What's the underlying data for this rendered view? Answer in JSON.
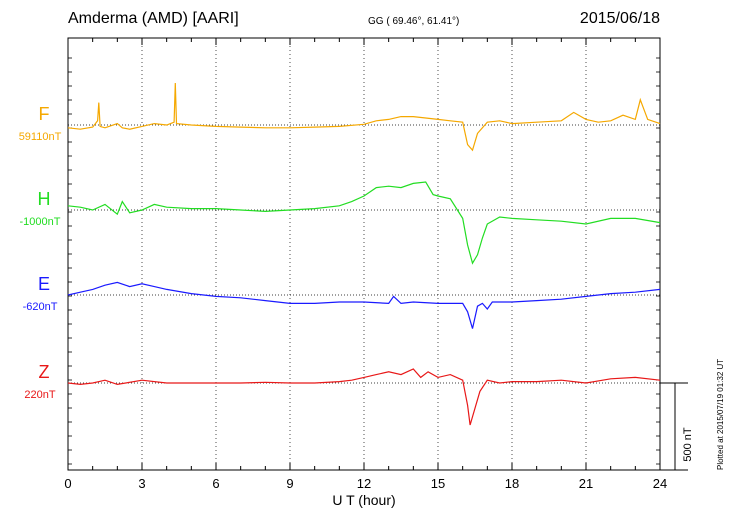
{
  "header": {
    "station": "Amderma (AMD)  [AARI]",
    "coords": "GG ( 69.46°,  61.41°)",
    "date": "2015/06/18"
  },
  "footer": {
    "plotted": "Plotted at 2015/07/19 01:32 UT"
  },
  "scale": {
    "label": "500 nT",
    "value_nT": 500
  },
  "chart_data": {
    "type": "line",
    "title": "Amderma (AMD)  [AARI]",
    "xlabel": "U T (hour)",
    "xlim": [
      0,
      24
    ],
    "xticks": [
      "0",
      "3",
      "6",
      "9",
      "12",
      "15",
      "18",
      "21",
      "24"
    ],
    "y_unit": "nT",
    "grid": "dotted vertical every 3 h",
    "series": [
      {
        "name": "F",
        "baseline_label": "59110nT",
        "baseline": 59110,
        "color": "#f5a800",
        "x": [
          0,
          0.5,
          1,
          1.2,
          1.25,
          1.3,
          1.5,
          2,
          2.2,
          2.5,
          3,
          3.5,
          4,
          4.3,
          4.35,
          4.4,
          5,
          6,
          7,
          8,
          9,
          10,
          11,
          12,
          12.5,
          13,
          13.5,
          14,
          14.5,
          15,
          15.5,
          16,
          16.2,
          16.4,
          16.6,
          17,
          17.5,
          18,
          19,
          20,
          20.5,
          21,
          21.5,
          22,
          22.5,
          23,
          23.2,
          23.5,
          24
        ],
        "values": [
          -20,
          -30,
          -15,
          30,
          160,
          -10,
          -20,
          10,
          -20,
          -30,
          -10,
          10,
          0,
          20,
          300,
          10,
          0,
          -10,
          -15,
          -20,
          -20,
          -15,
          -10,
          5,
          30,
          40,
          60,
          60,
          50,
          40,
          30,
          20,
          -140,
          -180,
          -60,
          20,
          30,
          10,
          20,
          30,
          90,
          40,
          20,
          30,
          70,
          40,
          180,
          40,
          10
        ]
      },
      {
        "name": "H",
        "baseline_label": "-1000nT",
        "baseline": -1000,
        "color": "#22dd22",
        "x": [
          0,
          0.5,
          1,
          1.5,
          2,
          2.2,
          2.5,
          3,
          3.5,
          4,
          5,
          6,
          7,
          8,
          9,
          10,
          11,
          11.5,
          12,
          12.5,
          13,
          13.5,
          14,
          14.5,
          14.8,
          15,
          15.5,
          16,
          16.2,
          16.4,
          16.6,
          16.8,
          17,
          17.5,
          18,
          19,
          20,
          21,
          22,
          23,
          24
        ],
        "values": [
          30,
          20,
          0,
          40,
          -30,
          60,
          -20,
          0,
          40,
          20,
          10,
          10,
          0,
          -10,
          0,
          10,
          30,
          60,
          100,
          160,
          170,
          160,
          190,
          200,
          110,
          100,
          80,
          -60,
          -250,
          -380,
          -320,
          -200,
          -100,
          -50,
          -60,
          -70,
          -80,
          -100,
          -60,
          -60,
          -90
        ]
      },
      {
        "name": "E",
        "baseline_label": "-620nT",
        "baseline": -620,
        "color": "#1a1aff",
        "x": [
          0,
          0.5,
          1,
          1.5,
          2,
          2.5,
          3,
          3.5,
          4,
          5,
          6,
          7,
          8,
          9,
          10,
          11,
          12,
          13,
          13.2,
          13.5,
          14,
          15,
          16,
          16.2,
          16.4,
          16.6,
          16.8,
          17,
          17.2,
          18,
          19,
          20,
          21,
          22,
          23,
          24
        ],
        "values": [
          0,
          20,
          40,
          70,
          90,
          60,
          80,
          60,
          40,
          10,
          -10,
          -20,
          -40,
          -60,
          -60,
          -50,
          -50,
          -60,
          -10,
          -60,
          -50,
          -60,
          -60,
          -120,
          -240,
          -80,
          -60,
          -100,
          -50,
          -50,
          -40,
          -30,
          -10,
          10,
          20,
          40
        ]
      },
      {
        "name": "Z",
        "baseline_label": "220nT",
        "baseline": 220,
        "color": "#e81818",
        "x": [
          0,
          0.5,
          1,
          1.5,
          2,
          3,
          4,
          5,
          6,
          7,
          8,
          9,
          10,
          11,
          11.5,
          12,
          12.5,
          13,
          13.5,
          14,
          14.3,
          14.6,
          15,
          15.5,
          16,
          16.2,
          16.3,
          16.5,
          16.7,
          17,
          17.5,
          18,
          19,
          20,
          21,
          22,
          23,
          24
        ],
        "values": [
          0,
          -10,
          0,
          20,
          -10,
          20,
          0,
          0,
          0,
          0,
          5,
          0,
          0,
          10,
          20,
          40,
          60,
          80,
          60,
          100,
          40,
          80,
          40,
          60,
          20,
          -160,
          -300,
          -180,
          -60,
          20,
          0,
          10,
          10,
          20,
          0,
          30,
          40,
          20
        ]
      }
    ]
  }
}
